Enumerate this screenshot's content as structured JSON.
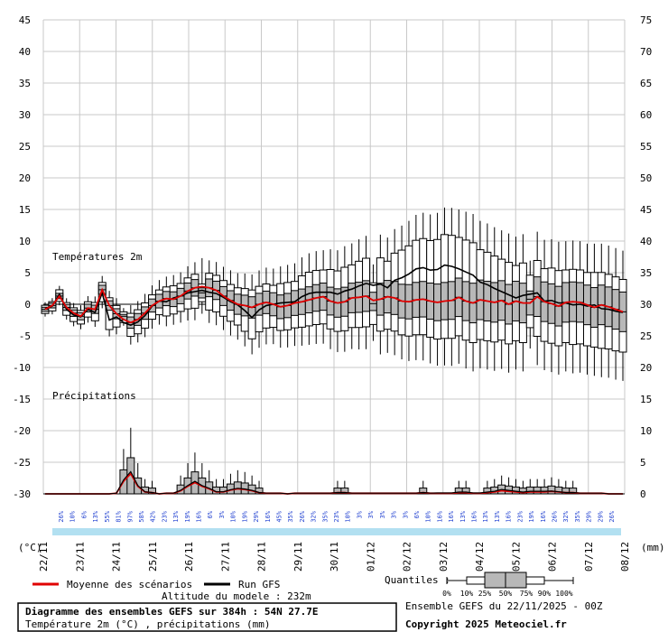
{
  "texts": {
    "temp_section": "Températures 2m",
    "precip_section": "Précipitations",
    "unit_left": "(°C)",
    "unit_right": "(mm)",
    "legend_mean": "Moyenne des scénarios",
    "legend_run": "Run GFS",
    "altitude": "Altitude du modele : 232m",
    "quantiles_label": "Quantiles :",
    "quantile_marks": [
      "0%",
      "10%",
      "25%",
      "50%",
      "75%",
      "90%",
      "100%"
    ],
    "title": "Diagramme des ensembles GEFS sur 384h : 54N 27.7E",
    "subtitle": "Température 2m (°C) , précipitations (mm)",
    "ensemble_info": "Ensemble GEFS du 22/11/2025 - 00Z",
    "copyright": "Copyright 2025 Meteociel.fr"
  },
  "colors": {
    "mean_line": "#e00000",
    "run_line": "#000000",
    "box_fill": "#b8b8b8",
    "grid": "#c8c8c8",
    "precip_prob_text": "#1f3fd0",
    "snow_band": "#9fd8ee"
  },
  "chart_data": [
    {
      "type": "box",
      "name": "temperature",
      "ylim": [
        -30,
        45
      ],
      "left_ticks": [
        45,
        40,
        35,
        30,
        25,
        20,
        15,
        10,
        5,
        0,
        -5,
        -10,
        -15,
        -20,
        -25,
        -30
      ],
      "x_labels": [
        "22/11",
        "23/11",
        "24/11",
        "25/11",
        "26/11",
        "27/11",
        "28/11",
        "29/11",
        "30/11",
        "01/12",
        "02/12",
        "03/12",
        "04/12",
        "05/12",
        "06/12",
        "07/12",
        "08/12"
      ],
      "x_step_hours": 6,
      "mean": [
        -0.8,
        -0.2,
        1.3,
        -0.5,
        -1.4,
        -1.9,
        -0.6,
        -0.8,
        2.3,
        -0.2,
        -1.5,
        -2.4,
        -2.9,
        -2.4,
        -1.4,
        -0.2,
        0.5,
        0.9,
        0.8,
        1.3,
        2.1,
        2.6,
        2.8,
        2.6,
        2.2,
        1.3,
        0.6,
        0.0,
        -0.2,
        -0.5,
        0.0,
        0.3,
        0.0,
        -0.4,
        -0.2,
        0.2,
        0.4,
        0.7,
        1.0,
        1.2,
        0.5,
        0.2,
        0.4,
        1.0,
        1.1,
        1.3,
        0.6,
        0.8,
        1.2,
        1.0,
        0.5,
        0.4,
        0.7,
        0.8,
        0.5,
        0.3,
        0.5,
        0.6,
        1.1,
        0.5,
        0.2,
        0.7,
        0.5,
        0.3,
        0.6,
        0.0,
        0.5,
        0.2,
        0.2,
        1.2,
        0.4,
        0.1,
        -0.3,
        0.3,
        0.4,
        0.3,
        -0.1,
        -0.5,
        -0.1,
        -0.4,
        -0.8,
        -1.2
      ],
      "run": [
        -0.7,
        -0.3,
        1.6,
        -0.8,
        -1.7,
        -2.0,
        -0.8,
        -1.3,
        1.8,
        -2.5,
        -2.0,
        -2.9,
        -3.3,
        -2.8,
        -1.8,
        -0.3,
        0.5,
        0.4,
        1.0,
        1.3,
        1.8,
        2.0,
        2.2,
        1.9,
        1.7,
        1.1,
        0.4,
        -0.1,
        -1.0,
        -2.1,
        -0.9,
        -0.2,
        0.0,
        0.2,
        0.3,
        0.4,
        1.2,
        1.7,
        1.9,
        1.9,
        1.9,
        1.6,
        2.1,
        2.4,
        2.9,
        3.3,
        3.0,
        3.2,
        2.6,
        3.8,
        4.2,
        4.8,
        5.6,
        5.8,
        5.4,
        5.5,
        6.2,
        6.0,
        5.6,
        5.1,
        4.6,
        3.5,
        3.1,
        2.5,
        2.0,
        1.5,
        1.0,
        1.4,
        1.6,
        1.8,
        0.5,
        0.6,
        0.2,
        0.2,
        -0.1,
        0.0,
        -0.3,
        -0.1,
        -0.7,
        -0.8,
        -1.1,
        -1.3
      ],
      "boxes": [
        {
          "index": 11,
          "min": -3.4,
          "q10": -2.9,
          "q25": -2.5,
          "median": -1.9,
          "q75": -1.6,
          "q90": -1.2,
          "max": -0.6
        },
        {
          "index": 22,
          "min": -1.5,
          "q10": 0.4,
          "q25": 1.0,
          "median": 1.8,
          "q75": 2.6,
          "q90": 3.2,
          "max": 7.3
        },
        {
          "index": 46,
          "min": -5.8,
          "q10": -3.2,
          "q25": -1.0,
          "median": 0.1,
          "q75": 1.9,
          "q90": 3.4,
          "max": 6.3
        },
        {
          "index": 68,
          "min": -7.0,
          "q10": -3.7,
          "q25": -1.7,
          "median": 0.8,
          "q75": 2.1,
          "q90": 4.6,
          "max": 6.9
        }
      ],
      "box_count": 82
    },
    {
      "type": "bar",
      "name": "precipitation",
      "right_ticks": [
        75,
        70,
        65,
        60,
        55,
        50,
        45,
        40,
        35,
        30,
        25,
        20,
        15,
        10,
        5,
        0
      ],
      "prob_percent": [
        "26%",
        "10%",
        "6%",
        "13%",
        "55%",
        "81%",
        "97%",
        "58%",
        "42%",
        "23%",
        "13%",
        "19%",
        "16%",
        "6%",
        "3%",
        "10%",
        "19%",
        "29%",
        "16%",
        "45%",
        "35%",
        "26%",
        "32%",
        "35%",
        "23%",
        "10%",
        "3%",
        "3%",
        "3%",
        "3%",
        "3%",
        "6%",
        "10%",
        "16%",
        "16%",
        "13%",
        "16%",
        "13%",
        "13%",
        "16%",
        "23%",
        "19%",
        "16%",
        "26%",
        "32%",
        "35%",
        "29%",
        "29%",
        "26%"
      ],
      "mean": [
        0,
        0,
        0,
        0,
        0,
        0,
        0,
        0,
        0,
        0,
        0.1,
        2.0,
        3.2,
        1.2,
        0.3,
        0.2,
        0,
        0.1,
        0.1,
        0.5,
        1.2,
        1.8,
        1.2,
        0.8,
        0.3,
        0.3,
        0.6,
        0.8,
        0.7,
        0.5,
        0.2,
        0.1,
        0.1,
        0.1,
        0,
        0.1,
        0.1,
        0.1,
        0.1,
        0.1,
        0.1,
        0.2,
        0.2,
        0.1,
        0.1,
        0.1,
        0.1,
        0.1,
        0.1,
        0.1,
        0.1,
        0.1,
        0.1,
        0.2,
        0.1,
        0.1,
        0.1,
        0.1,
        0.2,
        0.2,
        0.1,
        0.1,
        0.2,
        0.3,
        0.5,
        0.4,
        0.3,
        0.2,
        0.3,
        0.3,
        0.3,
        0.4,
        0.3,
        0.2,
        0.2,
        0.1,
        0.1,
        0.1,
        0.1,
        0,
        0,
        0
      ]
    }
  ]
}
